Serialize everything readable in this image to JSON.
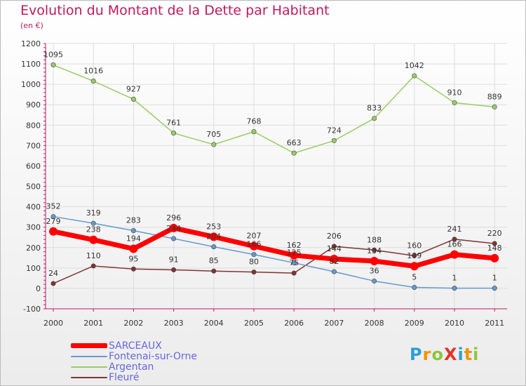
{
  "header": {
    "title": "Evolution du Montant de la Dette par Habitant",
    "unit": "(en €)"
  },
  "logo": {
    "text": "ProXiti",
    "colors": [
      "#2a9fd6",
      "#f29200",
      "#8cc63f",
      "#e4322b",
      "#2a9fd6",
      "#f29200",
      "#8cc63f"
    ]
  },
  "chart_data": {
    "type": "line",
    "categories": [
      "2000",
      "2001",
      "2002",
      "2003",
      "2004",
      "2005",
      "2006",
      "2007",
      "2008",
      "2009",
      "2010",
      "2011"
    ],
    "ylim": [
      -100,
      1200
    ],
    "yticks": [
      -100,
      0,
      100,
      200,
      300,
      400,
      500,
      600,
      700,
      800,
      900,
      1000,
      1100,
      1200
    ],
    "grid": true,
    "legend_position": "bottom-left",
    "series": [
      {
        "name": "SARCEAUX",
        "color": "#ff0000",
        "values": [
          279,
          238,
          194,
          296,
          253,
          207,
          162,
          144,
          134,
          109,
          166,
          148
        ],
        "labels": [
          "279",
          "238",
          "194",
          "296",
          "253",
          "207",
          "162",
          "144",
          "134",
          "109",
          "166",
          "148"
        ]
      },
      {
        "name": "Fontenai-sur-Orne",
        "color": "#6699cc",
        "values": [
          352,
          319,
          283,
          244,
          204,
          166,
          125,
          82,
          36,
          5,
          1,
          1
        ],
        "labels": [
          "352",
          "319",
          "283",
          "244",
          "204",
          "166",
          "125",
          "82",
          "36",
          "5",
          "1",
          "1"
        ]
      },
      {
        "name": "Argentan",
        "color": "#99cc66",
        "values": [
          1095,
          1016,
          927,
          761,
          705,
          768,
          663,
          724,
          833,
          1042,
          910,
          889
        ],
        "labels": [
          "1095",
          "1016",
          "927",
          "761",
          "705",
          "768",
          "663",
          "724",
          "833",
          "1042",
          "910",
          "889"
        ]
      },
      {
        "name": "Fleuré",
        "color": "#803333",
        "values": [
          24,
          110,
          95,
          91,
          85,
          80,
          75,
          206,
          188,
          160,
          241,
          220
        ],
        "labels": [
          "24",
          "110",
          "95",
          "91",
          "85",
          "80",
          "75",
          "206",
          "188",
          "160",
          "241",
          "220"
        ]
      }
    ]
  }
}
